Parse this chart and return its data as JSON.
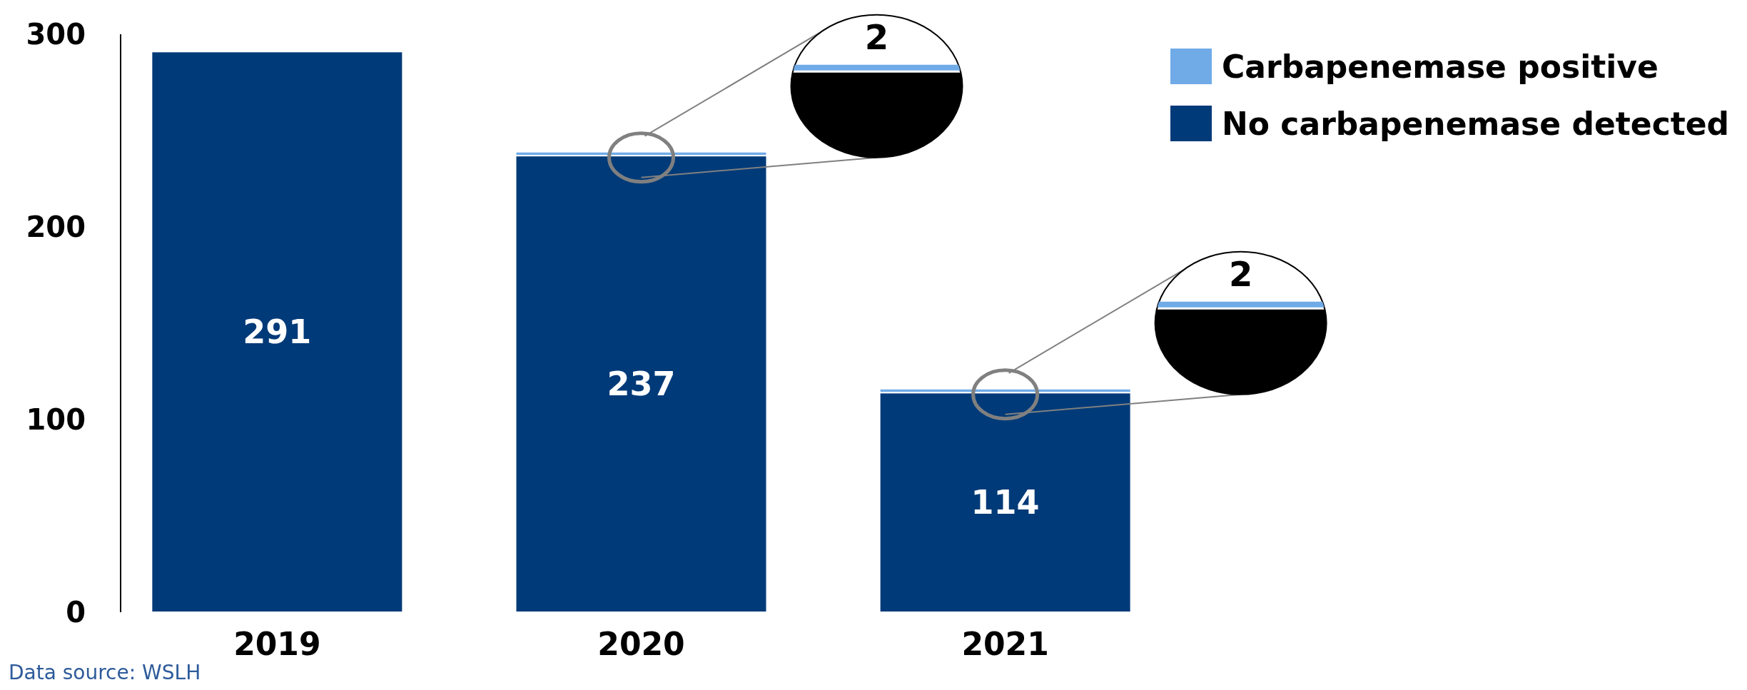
{
  "chart_data": {
    "type": "bar",
    "stacked": true,
    "categories": [
      "2019",
      "2020",
      "2021"
    ],
    "series": [
      {
        "name": "No carbapenemase detected",
        "color": "#003a78",
        "values": [
          291,
          237,
          114
        ],
        "value_labels": [
          "291",
          "237",
          "114"
        ]
      },
      {
        "name": "Carbapenemase positive",
        "color": "#70abe8",
        "values": [
          null,
          2,
          2
        ]
      }
    ],
    "ylim": [
      0,
      300
    ],
    "yticks": [
      0,
      100,
      200,
      300
    ],
    "grid": false,
    "legend": "top right",
    "annotations": [
      "2",
      "2",
      "Data source: WSLH"
    ]
  }
}
